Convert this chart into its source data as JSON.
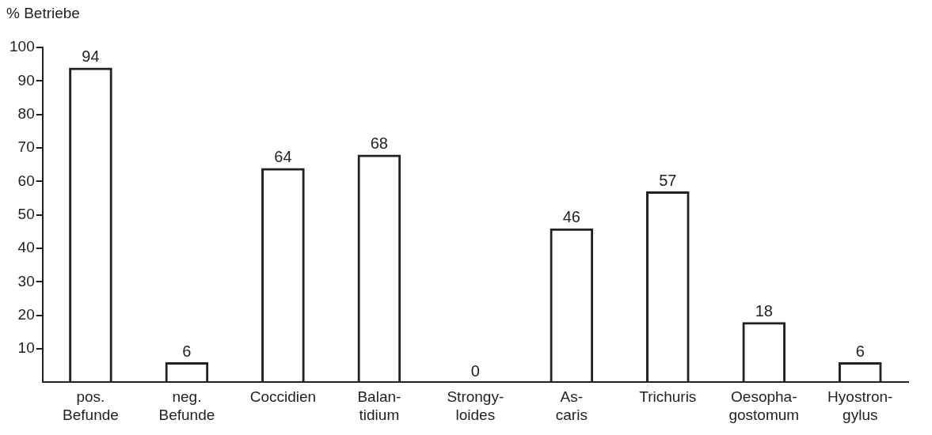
{
  "chart_data": {
    "type": "bar",
    "ylabel": "% Betriebe",
    "categories": [
      "pos.\nBefunde",
      "neg.\nBefunde",
      "Coccidien",
      "Balan-\ntidium",
      "Strongy-\nloides",
      "As-\ncaris",
      "Trichuris",
      "Oesopha-\ngostomum",
      "Hyostron-\ngylus"
    ],
    "values": [
      94,
      6,
      64,
      68,
      0,
      46,
      57,
      18,
      6
    ],
    "color": "#222222",
    "ylim": [
      0,
      100
    ],
    "yticks": [
      10,
      20,
      30,
      40,
      50,
      60,
      70,
      80,
      90,
      100
    ],
    "grid": false,
    "legend": false,
    "data_labels": true
  }
}
